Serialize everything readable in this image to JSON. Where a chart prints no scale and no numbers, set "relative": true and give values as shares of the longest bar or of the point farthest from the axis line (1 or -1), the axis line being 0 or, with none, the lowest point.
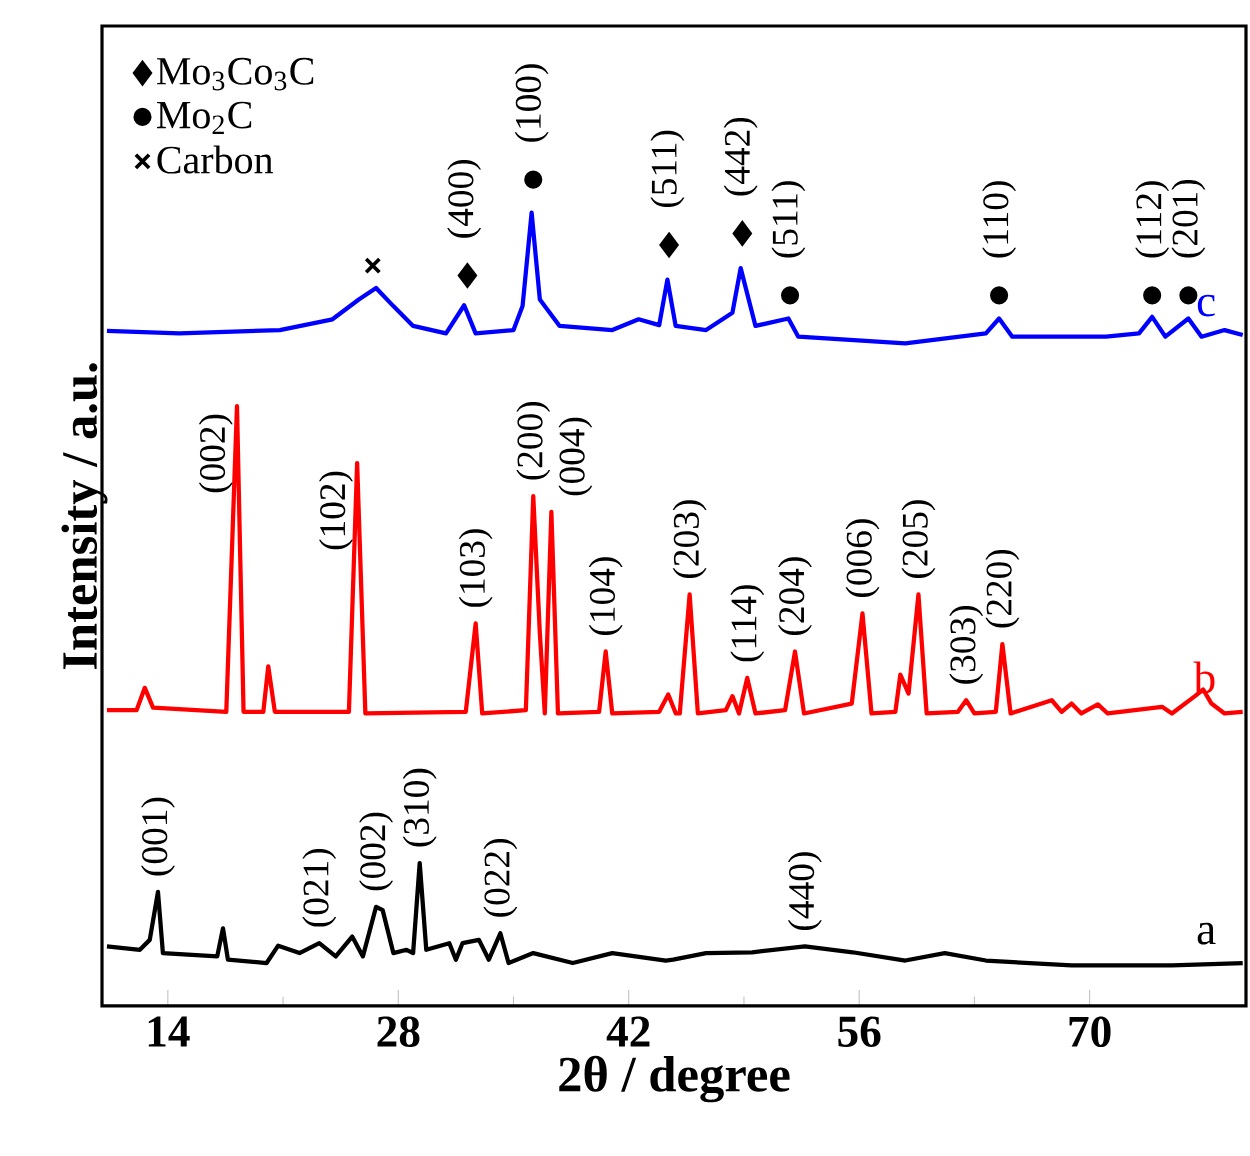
{
  "chart_data": {
    "type": "line",
    "relative": true,
    "xlabel": "2θ / degree",
    "ylabel": "Intensity / a.u.",
    "xlim": [
      10,
      79.5
    ],
    "xticks": [
      14,
      28,
      42,
      56,
      70
    ],
    "legend": "top left",
    "series": [
      {
        "name": "c",
        "color": "#0000ff",
        "x": [
          10.3,
          14.7,
          20.8,
          24.0,
          25.6,
          26.65,
          27.7,
          28.9,
          30.9,
          32.0,
          32.7,
          35.0,
          35.55,
          36.1,
          36.6,
          37.8,
          41.0,
          42.6,
          43.85,
          44.35,
          44.85,
          46.7,
          48.3,
          48.8,
          49.7,
          51.7,
          52.3,
          58.8,
          63.7,
          64.5,
          65.3,
          71.0,
          73.0,
          73.8,
          74.6,
          76.0,
          76.8,
          78.2,
          79.3
        ],
        "values": [
          0.817,
          0.814,
          0.818,
          0.831,
          0.855,
          0.869,
          0.847,
          0.823,
          0.814,
          0.848,
          0.814,
          0.818,
          0.847,
          0.96,
          0.855,
          0.823,
          0.818,
          0.831,
          0.824,
          0.879,
          0.823,
          0.818,
          0.839,
          0.893,
          0.823,
          0.832,
          0.81,
          0.802,
          0.814,
          0.832,
          0.81,
          0.81,
          0.814,
          0.834,
          0.81,
          0.832,
          0.81,
          0.818,
          0.812
        ]
      },
      {
        "name": "b",
        "color": "#ff0000",
        "x": [
          10.3,
          12.1,
          12.6,
          13.1,
          17.55,
          18.2,
          18.6,
          19.8,
          20.1,
          20.5,
          25.0,
          25.5,
          26.0,
          32.1,
          32.7,
          33.1,
          35.75,
          36.2,
          36.6,
          36.9,
          37.3,
          37.7,
          40.2,
          40.6,
          41.0,
          43.85,
          44.4,
          44.86,
          45.1,
          45.7,
          46.2,
          47.9,
          48.3,
          48.7,
          49.2,
          49.7,
          51.5,
          52.1,
          52.65,
          55.55,
          56.2,
          56.75,
          58.2,
          58.5,
          59.0,
          59.6,
          60.1,
          62.0,
          62.5,
          63.0,
          64.3,
          64.7,
          65.2,
          67.7,
          68.3,
          68.9,
          69.5,
          70.5,
          71.1,
          74.4,
          75.0,
          76.4,
          76.9,
          77.4,
          78.2,
          79.3
        ],
        "values": [
          0.358,
          0.358,
          0.385,
          0.361,
          0.356,
          0.726,
          0.356,
          0.356,
          0.411,
          0.356,
          0.356,
          0.657,
          0.354,
          0.356,
          0.463,
          0.354,
          0.358,
          0.617,
          0.451,
          0.354,
          0.598,
          0.354,
          0.356,
          0.429,
          0.354,
          0.356,
          0.377,
          0.354,
          0.354,
          0.498,
          0.354,
          0.358,
          0.375,
          0.354,
          0.397,
          0.354,
          0.358,
          0.429,
          0.354,
          0.366,
          0.475,
          0.354,
          0.356,
          0.401,
          0.378,
          0.498,
          0.354,
          0.356,
          0.37,
          0.354,
          0.356,
          0.438,
          0.354,
          0.37,
          0.356,
          0.366,
          0.354,
          0.365,
          0.354,
          0.362,
          0.354,
          0.375,
          0.383,
          0.366,
          0.354,
          0.356
        ]
      },
      {
        "name": "a",
        "color": "#000000",
        "x": [
          10.3,
          12.3,
          12.9,
          13.4,
          13.7,
          17.0,
          17.35,
          17.65,
          20.0,
          20.7,
          22.0,
          23.2,
          24.2,
          25.2,
          25.85,
          26.65,
          27.05,
          27.7,
          28.5,
          28.9,
          29.3,
          29.7,
          31.1,
          31.5,
          31.9,
          32.9,
          33.5,
          34.2,
          34.7,
          36.2,
          38.6,
          41.0,
          44.25,
          44.7,
          46.7,
          49.5,
          52.7,
          55.6,
          58.8,
          61.2,
          63.7,
          68.9,
          75.0,
          79.3
        ],
        "values": [
          0.072,
          0.068,
          0.08,
          0.138,
          0.064,
          0.06,
          0.094,
          0.056,
          0.052,
          0.073,
          0.064,
          0.076,
          0.06,
          0.084,
          0.06,
          0.12,
          0.116,
          0.064,
          0.068,
          0.064,
          0.173,
          0.068,
          0.076,
          0.056,
          0.076,
          0.08,
          0.056,
          0.088,
          0.052,
          0.064,
          0.052,
          0.064,
          0.055,
          0.056,
          0.064,
          0.065,
          0.072,
          0.065,
          0.055,
          0.064,
          0.055,
          0.049,
          0.049,
          0.052
        ]
      },
      {
        "name": "Mo$_{3}$Co$_{3}$C",
        "type": "scatter",
        "marker": "diamond",
        "color": "#000000",
        "x": [
          32.2,
          44.45,
          48.9
        ],
        "values": [
          0.884,
          0.921,
          0.935
        ]
      },
      {
        "name": "Mo$_{2}$C",
        "type": "scatter",
        "marker": "circle",
        "color": "#000000",
        "x": [
          36.2,
          51.8,
          64.5,
          73.8,
          76.0
        ],
        "values": [
          1.0,
          0.86,
          0.86,
          0.86,
          0.86
        ]
      },
      {
        "name": "Carbon",
        "type": "scatter",
        "marker": "cross",
        "color": "#000000",
        "x": [
          26.45
        ],
        "values": [
          0.896
        ]
      }
    ],
    "annotations": [
      {
        "text": "(400)",
        "x": 32.0,
        "y": 0.848
      },
      {
        "text": "(100)",
        "x": 36.1,
        "y": 0.96
      },
      {
        "text": "(511)",
        "x": 44.35,
        "y": 0.879
      },
      {
        "text": "(442)",
        "x": 48.8,
        "y": 0.893
      },
      {
        "text": "(511)",
        "x": 51.7,
        "y": 0.832
      },
      {
        "text": "(110)",
        "x": 64.5,
        "y": 0.832
      },
      {
        "text": "(112)",
        "x": 73.8,
        "y": 0.834
      },
      {
        "text": "(201)",
        "x": 76.0,
        "y": 0.832
      },
      {
        "text": "(002)",
        "x": 18.2,
        "y": 0.726
      },
      {
        "text": "(102)",
        "x": 25.5,
        "y": 0.657
      },
      {
        "text": "(103)",
        "x": 32.7,
        "y": 0.463
      },
      {
        "text": "(200)",
        "x": 36.2,
        "y": 0.617
      },
      {
        "text": "(004)",
        "x": 37.3,
        "y": 0.598
      },
      {
        "text": "(104)",
        "x": 40.6,
        "y": 0.429
      },
      {
        "text": "(203)",
        "x": 45.7,
        "y": 0.498
      },
      {
        "text": "(114)",
        "x": 49.2,
        "y": 0.397
      },
      {
        "text": "(204)",
        "x": 52.1,
        "y": 0.429
      },
      {
        "text": "(006)",
        "x": 56.2,
        "y": 0.475
      },
      {
        "text": "(205)",
        "x": 59.6,
        "y": 0.498
      },
      {
        "text": "(303)",
        "x": 62.5,
        "y": 0.37
      },
      {
        "text": "(220)",
        "x": 64.7,
        "y": 0.438
      },
      {
        "text": "(001)",
        "x": 13.4,
        "y": 0.138
      },
      {
        "text": "(021)",
        "x": 23.2,
        "y": 0.076
      },
      {
        "text": "(002)",
        "x": 26.65,
        "y": 0.12
      },
      {
        "text": "(310)",
        "x": 29.3,
        "y": 0.173
      },
      {
        "text": "(022)",
        "x": 34.2,
        "y": 0.088
      },
      {
        "text": "(440)",
        "x": 52.7,
        "y": 0.072
      }
    ]
  }
}
